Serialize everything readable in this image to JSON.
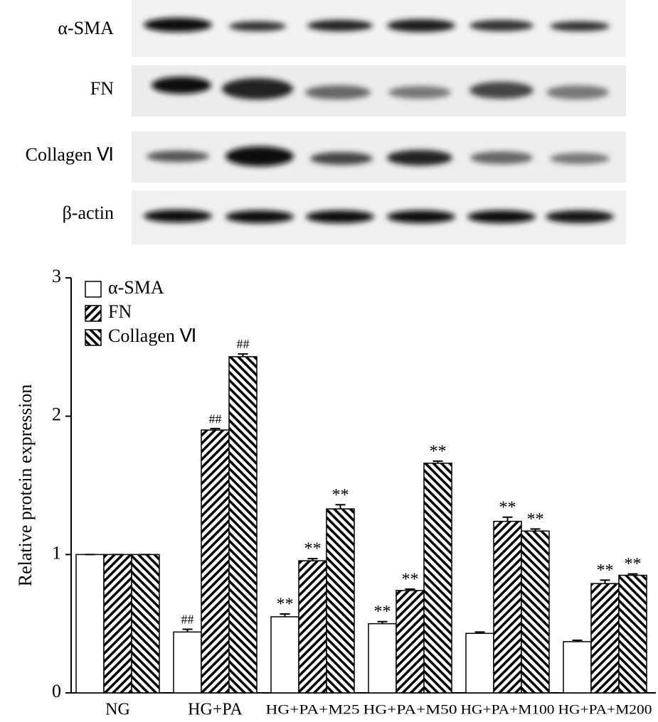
{
  "blot_labels": [
    "α-SMA",
    "FN",
    "Collagen Ⅵ",
    "β-actin"
  ],
  "chart_data": {
    "type": "bar",
    "y_label": "Relative protein expression",
    "categories": [
      "NG",
      "HG+PA",
      "HG+PA+M25",
      "HG+PA+M50",
      "HG+PA+M100",
      "HG+PA+M200"
    ],
    "series": [
      {
        "name": "α-SMA",
        "pattern": "none",
        "color": "#000000",
        "values": [
          1,
          0.44,
          0.55,
          0.5,
          0.43,
          0.37
        ],
        "errors": [
          0,
          0.02,
          0.02,
          0.015,
          0.01,
          0.01
        ],
        "annotations": [
          null,
          "##",
          "**",
          "**",
          null,
          null
        ]
      },
      {
        "name": "FN",
        "pattern": "backslash",
        "color": "#000000",
        "values": [
          1,
          1.9,
          0.955,
          0.74,
          1.24,
          0.79
        ],
        "errors": [
          0,
          0.01,
          0.015,
          0.01,
          0.03,
          0.025
        ],
        "annotations": [
          null,
          "##",
          "**",
          "**",
          "**",
          "**"
        ]
      },
      {
        "name": "Collagen Ⅵ",
        "pattern": "slash",
        "color": "#000000",
        "values": [
          1,
          2.43,
          1.33,
          1.66,
          1.17,
          0.85
        ],
        "errors": [
          0,
          0.02,
          0.03,
          0.015,
          0.015,
          0.01
        ],
        "annotations": [
          null,
          "##",
          "**",
          "**",
          "**",
          "**"
        ]
      }
    ],
    "ylim": [
      0,
      3
    ],
    "yticks": [
      0,
      1,
      2,
      3
    ],
    "legend": "upper left"
  }
}
